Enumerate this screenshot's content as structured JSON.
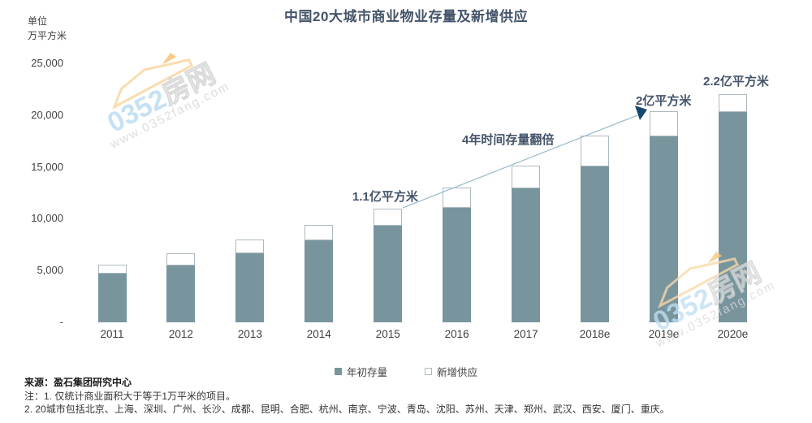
{
  "title": "中国20大城市商业物业存量及新增供应",
  "unit_label": {
    "line1": "单位",
    "line2": "万平方米"
  },
  "legend": {
    "stock": "年初存量",
    "supply": "新增供应"
  },
  "footer": {
    "source": "来源：盈石集团研究中心",
    "note1": "注：1. 仅统计商业面积大于等于1万平米的项目。",
    "note2": "2. 20城市包括北京、上海、深圳、广州、长沙、成都、昆明、合肥、杭州、南京、宁波、青岛、沈阳、苏州、天津、郑州、武汉、西安、厦门、重庆。"
  },
  "watermark": {
    "brand_prefix": "0352",
    "brand_suffix": "房网",
    "url": "www.0352fang.com"
  },
  "colors": {
    "title": "#44546A",
    "stock_fill": "#78959E",
    "supply_fill": "#FFFFFF",
    "supply_border": "#ADB9BF",
    "arrow_line": "#9DBECB",
    "arrow_head": "#17486B",
    "watermark_blue": "#BFDFF3",
    "watermark_orange": "#F9D9A7"
  },
  "chart_data": {
    "type": "bar",
    "stacked": true,
    "title": "中国20大城市商业物业存量及新增供应",
    "xlabel": "",
    "ylabel": "万平方米",
    "ylim": [
      0,
      25000
    ],
    "grid": false,
    "legend_position": "bottom",
    "categories": [
      "2011",
      "2012",
      "2013",
      "2014",
      "2015",
      "2016",
      "2017",
      "2018e",
      "2019e",
      "2020e"
    ],
    "series": [
      {
        "name": "年初存量",
        "color": "#78959E",
        "values": [
          4800,
          5600,
          6700,
          8000,
          9400,
          11100,
          13000,
          15100,
          18000,
          20400
        ]
      },
      {
        "name": "新增供应",
        "color": "#FFFFFF",
        "values": [
          800,
          1100,
          1300,
          1400,
          1600,
          1900,
          2100,
          2900,
          2400,
          1600
        ]
      }
    ],
    "y_ticks": {
      "values": [
        25000,
        20000,
        15000,
        10000,
        5000,
        0
      ],
      "labels": [
        "25,000",
        "20,000",
        "15,000",
        "10,000",
        "5,000",
        "-"
      ]
    },
    "annotations": [
      {
        "text": "1.1亿平方米",
        "target": "2015",
        "note": "total of 2015 bar ≈ 11,000万平方米"
      },
      {
        "text": "4年时间存量翻倍",
        "target": "2015→2019e",
        "note": "label on arrow"
      },
      {
        "text": "2亿平方米",
        "target": "2019e",
        "note": "total ≈ 20,400万平方米"
      },
      {
        "text": "2.2亿平方米",
        "target": "2020e",
        "note": "total ≈ 22,000万平方米"
      }
    ],
    "arrow": {
      "from_category": "2015",
      "to_category": "2019e"
    }
  }
}
